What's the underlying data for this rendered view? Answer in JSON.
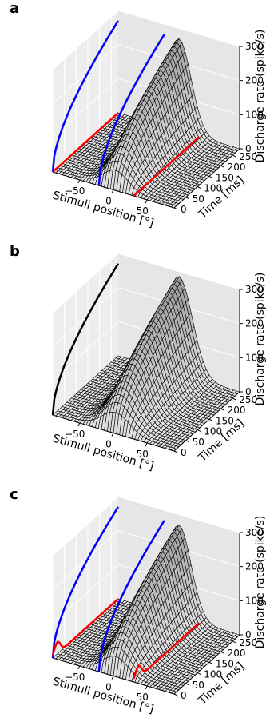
{
  "chart_data": [
    {
      "panel_label": "a",
      "type": "surface3d",
      "xlabel": "Stimuli position [°]",
      "ylabel": "Time [ms]",
      "zlabel": "Discharge rate (spike/s)",
      "x_ticks": [
        "−50",
        "0",
        "50"
      ],
      "y_ticks": [
        "0",
        "50",
        "100",
        "150",
        "200",
        "250"
      ],
      "z_ticks": [
        "0",
        "100",
        "200",
        "300"
      ],
      "xlim": [
        -90,
        90
      ],
      "ylim": [
        0,
        280
      ],
      "zlim": [
        0,
        300
      ],
      "surface": {
        "center": 0,
        "width": 18,
        "peak": 270
      },
      "projections": [
        {
          "plane": "x-wall",
          "color": "#0000ff",
          "peak": 270,
          "shape": "rise"
        },
        {
          "plane": "y-wall",
          "color": "#0000ff",
          "peak": 270,
          "shape": "rise"
        },
        {
          "plane": "floor-x-time0",
          "color": "#ff0000",
          "shape": "flat"
        },
        {
          "plane": "floor-center",
          "color": "#ff0000",
          "shape": "flat"
        }
      ],
      "colors": {
        "surface_fill": "#c8c8c8",
        "pane_left": "#ededed",
        "pane_right": "#e6e6e6"
      }
    },
    {
      "panel_label": "b",
      "type": "surface3d",
      "xlabel": "Stimuli position [°]",
      "ylabel": "Time [ms]",
      "zlabel": "Discharge rate (spike/s)",
      "x_ticks": [
        "−50",
        "0",
        "50"
      ],
      "y_ticks": [
        "0",
        "50",
        "100",
        "150",
        "200",
        "250"
      ],
      "z_ticks": [
        "0",
        "100",
        "200",
        "300"
      ],
      "xlim": [
        -90,
        90
      ],
      "ylim": [
        0,
        280
      ],
      "zlim": [
        0,
        300
      ],
      "surface": {
        "center": 0,
        "width": 20,
        "peak": 285
      },
      "projections": [
        {
          "plane": "x-wall",
          "color": "#000000",
          "peak": 270,
          "shape": "rise"
        }
      ],
      "colors": {
        "surface_fill": "#bdbdbd",
        "pane_left": "#ededed",
        "pane_right": "#e6e6e6"
      }
    },
    {
      "panel_label": "c",
      "type": "surface3d",
      "xlabel": "Stimuli position [°]",
      "ylabel": "Time [ms]",
      "zlabel": "Discharge rate (spike/s)",
      "x_ticks": [
        "−50",
        "0",
        "50"
      ],
      "y_ticks": [
        "0",
        "50",
        "100",
        "150",
        "200",
        "250"
      ],
      "z_ticks": [
        "0",
        "100",
        "200",
        "300"
      ],
      "xlim": [
        -90,
        90
      ],
      "ylim": [
        0,
        280
      ],
      "zlim": [
        0,
        300
      ],
      "surface": {
        "center": 0,
        "width": 18,
        "peak": 270
      },
      "projections": [
        {
          "plane": "x-wall",
          "color": "#0000ff",
          "peak": 270,
          "shape": "rise"
        },
        {
          "plane": "y-wall",
          "color": "#0000ff",
          "peak": 270,
          "shape": "rise"
        },
        {
          "plane": "floor-x-time0",
          "color": "#ff0000",
          "shape": "bump"
        },
        {
          "plane": "floor-center",
          "color": "#ff0000",
          "shape": "bump"
        }
      ],
      "colors": {
        "surface_fill": "#c8c8c8",
        "pane_left": "#ededed",
        "pane_right": "#e6e6e6"
      }
    }
  ]
}
